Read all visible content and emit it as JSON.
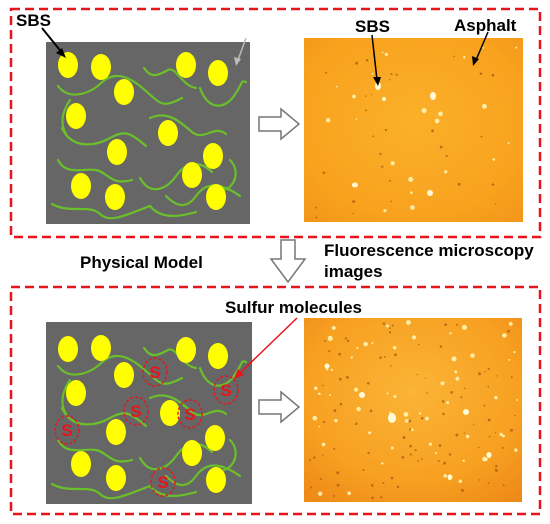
{
  "labels": {
    "sbs_model": "SBS",
    "asphalt_model": "Asphalt",
    "sbs_image": "SBS",
    "asphalt_image": "Asphalt",
    "physical_model": "Physical Model",
    "fluorescence_line1": "Fluorescence microscopy",
    "fluorescence_line2": "images",
    "sulfur": "Sulfur molecules",
    "sulfur_symbol": "S"
  },
  "colors": {
    "frame_dash": "#e8141c",
    "model_background": "#666666",
    "sbs_particle": "#ffff00",
    "polymer_chain": "#6abf2a",
    "sulfur": "#e8141c",
    "micrograph_orange": "#f8a21e"
  },
  "icons": {
    "process_arrow": "hollow-right-arrow",
    "down_arrow": "hollow-down-arrow"
  }
}
